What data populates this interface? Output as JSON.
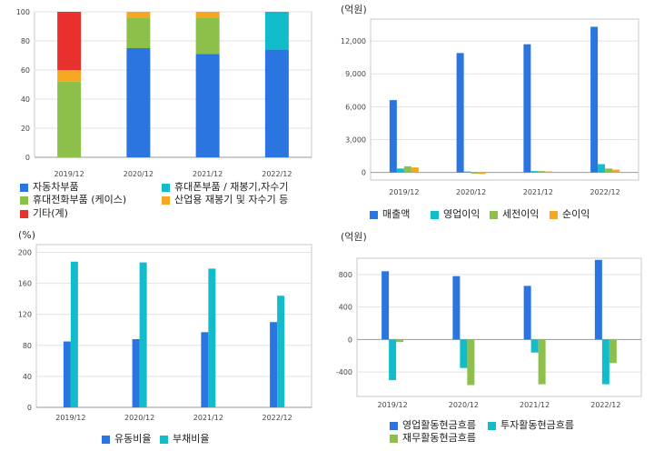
{
  "colors": {
    "blue": "#2b75e0",
    "cyan": "#12bccb",
    "green": "#8cc04b",
    "orange": "#f5a623",
    "red": "#e8312c"
  },
  "charts": [
    {
      "id": "c1",
      "unit_label": "",
      "legend": [
        "자동차부품",
        "휴대폰부품 / 재봉기,자수기",
        "휴대전화부품 (케이스)",
        "산업용 재봉기 및 자수기 등",
        "기타(계)"
      ],
      "chart_data": {
        "type": "bar",
        "stacked": true,
        "categories": [
          "2019/12",
          "2020/12",
          "2021/12",
          "2022/12"
        ],
        "ylim": [
          0,
          100
        ],
        "yticks": [
          0,
          20,
          40,
          60,
          80,
          100
        ],
        "series": [
          {
            "name": "자동차부품",
            "color": "#2b75e0",
            "values": [
              0,
              75,
              71,
              74
            ]
          },
          {
            "name": "휴대폰부품 / 재봉기,자수기",
            "color": "#12bccb",
            "values": [
              0,
              0,
              0,
              26
            ]
          },
          {
            "name": "휴대전화부품 (케이스)",
            "color": "#8cc04b",
            "values": [
              52,
              21,
              25,
              0
            ]
          },
          {
            "name": "산업용 재봉기 및 자수기 등",
            "color": "#f5a623",
            "values": [
              8,
              4,
              4,
              0
            ]
          },
          {
            "name": "기타(계)",
            "color": "#e8312c",
            "values": [
              40,
              0,
              0,
              0
            ]
          }
        ]
      }
    },
    {
      "id": "c2",
      "unit_label": "(억원)",
      "legend": [
        "매출액",
        "영업이익",
        "세전이익",
        "순이익"
      ],
      "chart_data": {
        "type": "bar",
        "categories": [
          "2019/12",
          "2020/12",
          "2021/12",
          "2022/12"
        ],
        "ylim": [
          -700,
          14000
        ],
        "yticks": [
          0,
          3000,
          6000,
          9000,
          12000
        ],
        "ytick_labels": [
          "0",
          "3,000",
          "6,000",
          "9,000",
          "12,000"
        ],
        "series": [
          {
            "name": "매출액",
            "color": "#2b75e0",
            "values": [
              6600,
              10900,
              11700,
              13300
            ]
          },
          {
            "name": "영업이익",
            "color": "#12bccb",
            "values": [
              350,
              80,
              120,
              750
            ]
          },
          {
            "name": "세전이익",
            "color": "#8cc04b",
            "values": [
              550,
              -120,
              120,
              350
            ]
          },
          {
            "name": "순이익",
            "color": "#f5a623",
            "values": [
              450,
              -150,
              80,
              250
            ]
          }
        ]
      }
    },
    {
      "id": "c3",
      "unit_label": "(%)",
      "legend": [
        "유동비율",
        "부채비율"
      ],
      "chart_data": {
        "type": "bar",
        "categories": [
          "2019/12",
          "2020/12",
          "2021/12",
          "2022/12"
        ],
        "ylim": [
          0,
          210
        ],
        "yticks": [
          0,
          40,
          80,
          120,
          160,
          200
        ],
        "series": [
          {
            "name": "유동비율",
            "color": "#2b75e0",
            "values": [
              85,
              88,
              97,
              110
            ]
          },
          {
            "name": "부채비율",
            "color": "#12bccb",
            "values": [
              188,
              187,
              179,
              144
            ]
          }
        ]
      }
    },
    {
      "id": "c4",
      "unit_label": "(억원)",
      "legend": [
        "영업활동현금흐름",
        "투자활동현금흐름",
        "재무활동현금흐름"
      ],
      "chart_data": {
        "type": "bar",
        "categories": [
          "2019/12",
          "2020/12",
          "2021/12",
          "2022/12"
        ],
        "ylim": [
          -700,
          1000
        ],
        "yticks": [
          -400,
          0,
          400,
          800
        ],
        "series": [
          {
            "name": "영업활동현금흐름",
            "color": "#2b75e0",
            "values": [
              840,
              780,
              660,
              980
            ]
          },
          {
            "name": "투자활동현금흐름",
            "color": "#12bccb",
            "values": [
              -500,
              -350,
              -160,
              -550
            ]
          },
          {
            "name": "재무활동현금흐름",
            "color": "#8cc04b",
            "values": [
              -30,
              -560,
              -550,
              -290
            ]
          }
        ]
      }
    }
  ]
}
